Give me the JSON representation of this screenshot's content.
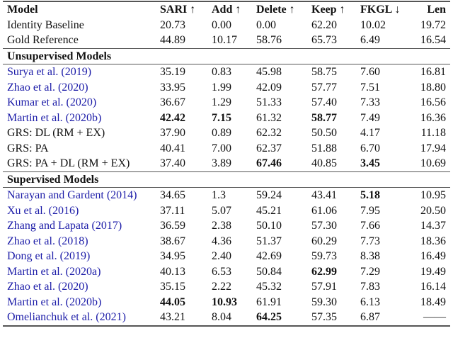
{
  "columns": [
    "Model",
    "SARI ↑",
    "Add ↑",
    "Delete ↑",
    "Keep ↑",
    "FKGL ↓",
    "Len"
  ],
  "colors": {
    "citation": "#1c1ca8",
    "text": "#111111"
  },
  "baselines": [
    {
      "model": "Identity Baseline",
      "cite": false,
      "values": [
        "20.73",
        "0.00",
        "0.00",
        "62.20",
        "10.02",
        "19.72"
      ],
      "bold": []
    },
    {
      "model": "Gold Reference",
      "cite": false,
      "values": [
        "44.89",
        "10.17",
        "58.76",
        "65.73",
        "6.49",
        "16.54"
      ],
      "bold": []
    }
  ],
  "sections": [
    {
      "title": "Unsupervised Models",
      "rows": [
        {
          "model": "Surya et al. (2019)",
          "cite": true,
          "values": [
            "35.19",
            "0.83",
            "45.98",
            "58.75",
            "7.60",
            "16.81"
          ],
          "bold": []
        },
        {
          "model": "Zhao et al. (2020)",
          "cite": true,
          "values": [
            "33.95",
            "1.99",
            "42.09",
            "57.77",
            "7.51",
            "18.80"
          ],
          "bold": []
        },
        {
          "model": "Kumar et al. (2020)",
          "cite": true,
          "values": [
            "36.67",
            "1.29",
            "51.33",
            "57.40",
            "7.33",
            "16.56"
          ],
          "bold": []
        },
        {
          "model": "Martin et al. (2020b)",
          "cite": true,
          "values": [
            "42.42",
            "7.15",
            "61.32",
            "58.77",
            "7.49",
            "16.36"
          ],
          "bold": [
            0,
            1,
            3
          ]
        },
        {
          "model": "GRS: DL (RM + EX)",
          "cite": false,
          "values": [
            "37.90",
            "0.89",
            "62.32",
            "50.50",
            "4.17",
            "11.18"
          ],
          "bold": []
        },
        {
          "model": "GRS: PA",
          "cite": false,
          "values": [
            "40.41",
            "7.00",
            "62.37",
            "51.88",
            "6.70",
            "17.94"
          ],
          "bold": []
        },
        {
          "model": "GRS: PA + DL (RM + EX)",
          "cite": false,
          "values": [
            "37.40",
            "3.89",
            "67.46",
            "40.85",
            "3.45",
            "10.69"
          ],
          "bold": [
            2,
            4
          ]
        }
      ]
    },
    {
      "title": "Supervised Models",
      "rows": [
        {
          "model": "Narayan and Gardent (2014)",
          "cite": true,
          "values": [
            "34.65",
            "1.3",
            "59.24",
            "43.41",
            "5.18",
            "10.95"
          ],
          "bold": [
            4
          ]
        },
        {
          "model": "Xu et al. (2016)",
          "cite": true,
          "values": [
            "37.11",
            "5.07",
            "45.21",
            "61.06",
            "7.95",
            "20.50"
          ],
          "bold": []
        },
        {
          "model": "Zhang and Lapata (2017)",
          "cite": true,
          "values": [
            "36.59",
            "2.38",
            "50.10",
            "57.30",
            "7.66",
            "14.37"
          ],
          "bold": []
        },
        {
          "model": "Zhao et al. (2018)",
          "cite": true,
          "values": [
            "38.67",
            "4.36",
            "51.37",
            "60.29",
            "7.73",
            "18.36"
          ],
          "bold": []
        },
        {
          "model": "Dong et al. (2019)",
          "cite": true,
          "values": [
            "34.95",
            "2.40",
            "42.69",
            "59.73",
            "8.38",
            "16.49"
          ],
          "bold": []
        },
        {
          "model": "Martin et al. (2020a)",
          "cite": true,
          "values": [
            "40.13",
            "6.53",
            "50.84",
            "62.99",
            "7.29",
            "19.49"
          ],
          "bold": [
            3
          ]
        },
        {
          "model": "Zhao et al. (2020)",
          "cite": true,
          "values": [
            "35.15",
            "2.22",
            "45.32",
            "57.91",
            "7.83",
            "16.14"
          ],
          "bold": []
        },
        {
          "model": "Martin et al. (2020b)",
          "cite": true,
          "values": [
            "44.05",
            "10.93",
            "61.91",
            "59.30",
            "6.13",
            "18.49"
          ],
          "bold": [
            0,
            1
          ]
        },
        {
          "model": "Omelianchuk et al. (2021)",
          "cite": true,
          "values": [
            "43.21",
            "8.04",
            "64.25",
            "57.35",
            "6.87",
            "——"
          ],
          "bold": [
            2
          ]
        }
      ]
    }
  ]
}
